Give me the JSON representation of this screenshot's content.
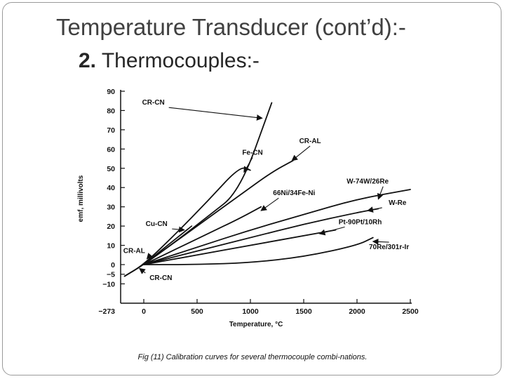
{
  "slide": {
    "title": "Temperature Transducer (cont’d):-",
    "subtitle_number": "2.",
    "subtitle_text": "Thermocouples:-",
    "caption": "Fig (11) Calibration curves for several thermocouple combi-nations."
  },
  "chart_data": {
    "type": "line",
    "title": "",
    "xlabel": "Temperature, °C",
    "ylabel": "emf, millivolts",
    "xlim": [
      -273,
      2500
    ],
    "ylim": [
      -10,
      90
    ],
    "x_ticks": [
      {
        "value": -273,
        "label": "−273"
      },
      {
        "value": 0,
        "label": "0"
      },
      {
        "value": 500,
        "label": "500"
      },
      {
        "value": 1000,
        "label": "1000"
      },
      {
        "value": 1500,
        "label": "1500"
      },
      {
        "value": 2000,
        "label": "2000"
      },
      {
        "value": 2500,
        "label": "2500"
      }
    ],
    "y_ticks": [
      {
        "value": 90,
        "label": "90"
      },
      {
        "value": 80,
        "label": "80"
      },
      {
        "value": 70,
        "label": "70"
      },
      {
        "value": 60,
        "label": "60"
      },
      {
        "value": 50,
        "label": "50"
      },
      {
        "value": 40,
        "label": "40"
      },
      {
        "value": 30,
        "label": "30"
      },
      {
        "value": 20,
        "label": "20"
      },
      {
        "value": 10,
        "label": "10"
      },
      {
        "value": 0,
        "label": "0"
      },
      {
        "value": -5,
        "label": "−5"
      },
      {
        "value": -10,
        "label": "−10"
      }
    ],
    "series": [
      {
        "name": "CR-CN",
        "x": [
          -180,
          0,
          300,
          600,
          900,
          1200
        ],
        "y": [
          -6,
          0,
          12,
          25,
          38,
          84
        ],
        "label_at": [
          90,
          83
        ],
        "arrow_to": [
          1110,
          76
        ]
      },
      {
        "name": "Fe-CN",
        "x": [
          -180,
          0,
          300,
          600,
          900,
          1000
        ],
        "y": [
          -6,
          0,
          16,
          33,
          51,
          49
        ],
        "label_at": [
          1020,
          57
        ],
        "arrow_to": [
          940,
          48
        ]
      },
      {
        "name": "CR-AL",
        "x": [
          0,
          300,
          600,
          900,
          1200,
          1400
        ],
        "y": [
          0,
          12,
          24,
          36,
          48,
          54
        ],
        "label_at": [
          1560,
          63
        ],
        "arrow_to": [
          1390,
          54
        ]
      },
      {
        "name": "66Ni/34Fe-Ni",
        "x": [
          0,
          300,
          600,
          900,
          1100
        ],
        "y": [
          0,
          8,
          16,
          24,
          30
        ],
        "label_at": [
          1410,
          36
        ],
        "arrow_to": [
          1100,
          28
        ]
      },
      {
        "name": "W-74W/26Re",
        "x": [
          0,
          500,
          1000,
          1500,
          2000,
          2500
        ],
        "y": [
          0,
          9,
          18,
          26,
          34,
          39
        ],
        "label_at": [
          2100,
          42
        ],
        "arrow_to": [
          2200,
          34
        ]
      },
      {
        "name": "W-Re",
        "x": [
          0,
          500,
          1000,
          1500,
          2000,
          2200
        ],
        "y": [
          0,
          7,
          14,
          21,
          27,
          29
        ],
        "label_at": [
          2380,
          31
        ],
        "arrow_to": [
          2100,
          28
        ]
      },
      {
        "name": "Pt-90Pt/10Rh",
        "x": [
          0,
          500,
          1000,
          1500,
          1800
        ],
        "y": [
          0,
          5,
          10,
          15,
          18
        ],
        "label_at": [
          2030,
          21
        ],
        "arrow_to": [
          1650,
          16
        ]
      },
      {
        "name": "70Re/301r-Ir",
        "x": [
          0,
          500,
          1000,
          1500,
          2000,
          2150
        ],
        "y": [
          0,
          0,
          1,
          4,
          10,
          14
        ],
        "label_at": [
          2300,
          8
        ],
        "arrow_to": [
          2150,
          12
        ]
      },
      {
        "name": "Cu-CN",
        "x": [
          -180,
          0,
          200,
          450
        ],
        "y": [
          -6,
          0,
          9,
          20
        ],
        "label_at": [
          120,
          20
        ],
        "arrow_to": [
          380,
          18
        ]
      }
    ],
    "extra_labels": [
      {
        "text": "CR-AL",
        "label_at": [
          -90,
          6
        ],
        "arrow_to": [
          30,
          3
        ]
      },
      {
        "text": "CR-CN",
        "label_at": [
          160,
          -8
        ],
        "arrow_to": [
          -40,
          -2
        ]
      }
    ],
    "grid": false,
    "legend": "none"
  }
}
